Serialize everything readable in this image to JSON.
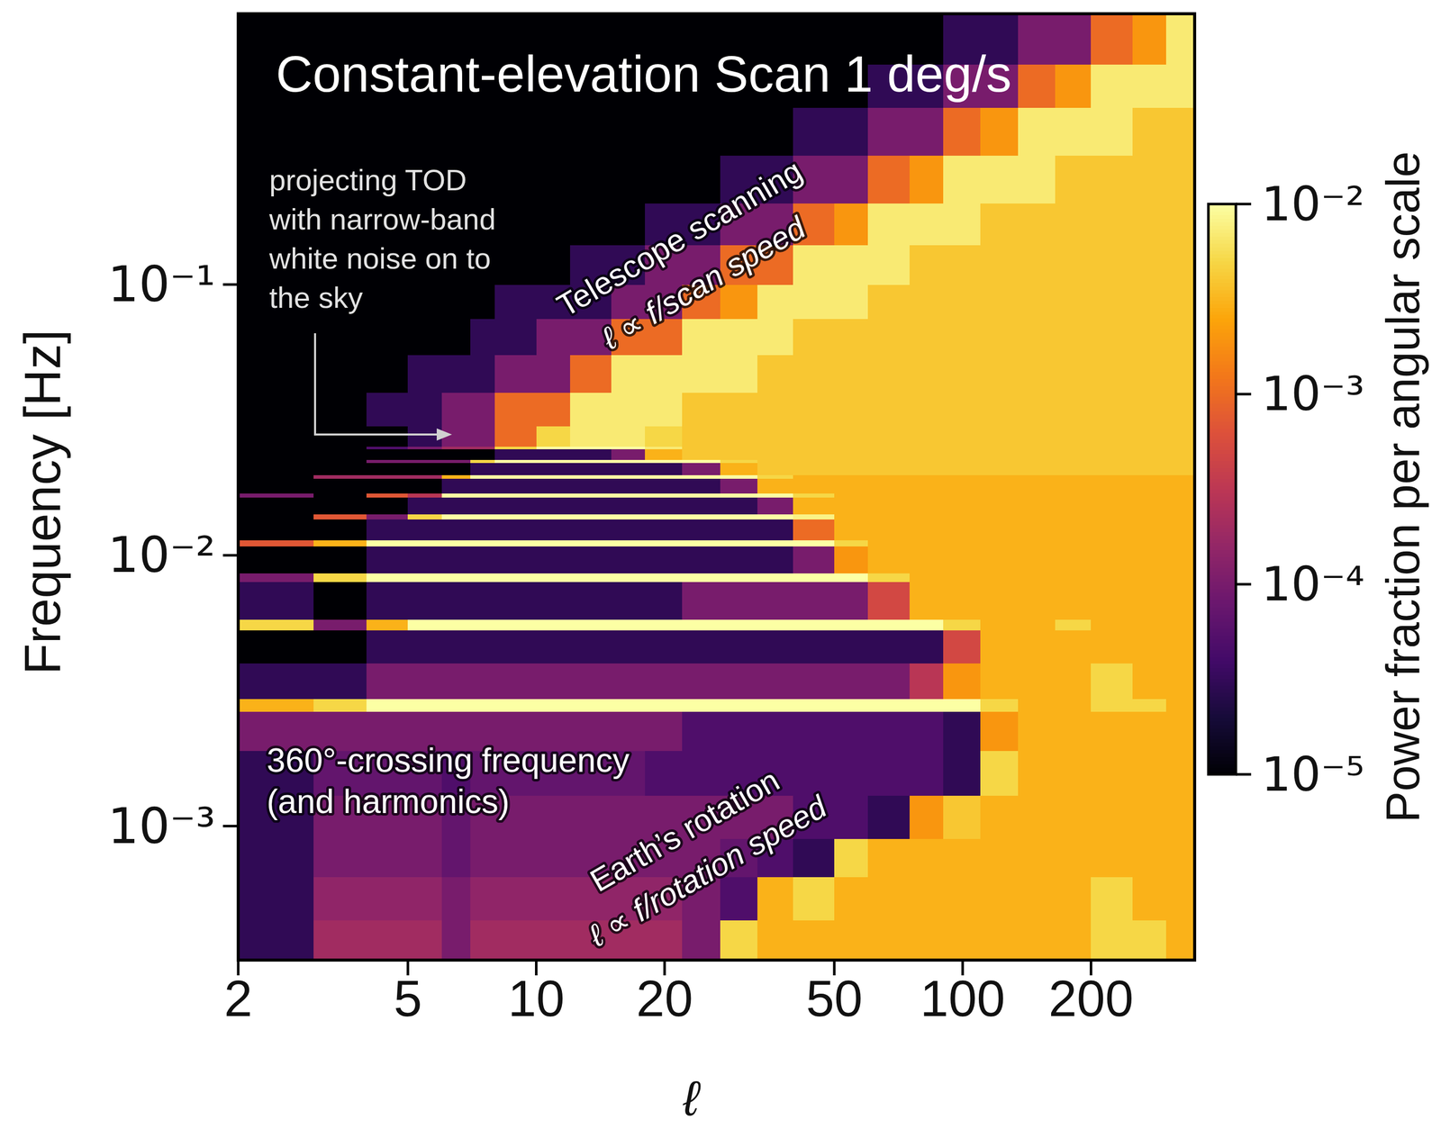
{
  "chart_data": {
    "type": "heatmap",
    "title": "Constant-elevation Scan 1 deg/s",
    "x_label": "ℓ",
    "y_label": "Frequency [Hz]",
    "log": true,
    "grid": false,
    "xlim": [
      2,
      350
    ],
    "ylim": [
      0.00032,
      1
    ],
    "xticks": [
      2,
      5,
      10,
      20,
      50,
      100,
      200
    ],
    "yticks": [
      {
        "value": 0.001,
        "label": "10⁻³"
      },
      {
        "value": 0.01,
        "label": "10⁻²"
      },
      {
        "value": 0.1,
        "label": "10⁻¹"
      }
    ],
    "x_edges": [
      2,
      3,
      4,
      5,
      6,
      7,
      8,
      10,
      12,
      15,
      18,
      22,
      27,
      33,
      40,
      50,
      60,
      75,
      90,
      110,
      135,
      165,
      200,
      250,
      300,
      350
    ],
    "y_edges": [
      0.00032,
      0.00045,
      0.00065,
      0.0009,
      0.0013,
      0.0019,
      0.00265,
      0.00295,
      0.004,
      0.0053,
      0.0058,
      0.008,
      0.0086,
      0.0108,
      0.0114,
      0.0136,
      0.0142,
      0.0164,
      0.017,
      0.0192,
      0.0198,
      0.022,
      0.0226,
      0.0247,
      0.0253,
      0.03,
      0.04,
      0.055,
      0.075,
      0.1,
      0.14,
      0.2,
      0.3,
      0.45,
      0.65,
      1.0
    ],
    "cells": [
      [
        3e-05,
        0.0002,
        0.0002,
        0.0002,
        0.0001,
        0.0002,
        0.0002,
        0.0002,
        0.0002,
        0.0002,
        0.0002,
        0.0001,
        0.005,
        0.003,
        0.003,
        0.003,
        0.003,
        0.003,
        0.003,
        0.003,
        0.003,
        0.003,
        0.005,
        0.005,
        0.003
      ],
      [
        3e-05,
        0.00015,
        0.00015,
        0.00015,
        0.0001,
        0.00015,
        0.00015,
        0.00015,
        0.00015,
        0.00015,
        0.00015,
        0.0001,
        5e-05,
        0.003,
        0.005,
        0.003,
        0.003,
        0.003,
        0.003,
        0.003,
        0.003,
        0.003,
        0.005,
        0.003,
        0.003
      ],
      [
        3e-05,
        0.0001,
        0.0001,
        0.0001,
        7e-05,
        0.0001,
        0.0001,
        0.0001,
        0.0001,
        0.0001,
        0.0001,
        0.0001,
        7e-05,
        5e-05,
        3e-05,
        0.005,
        0.003,
        0.003,
        0.003,
        0.003,
        0.003,
        0.003,
        0.003,
        0.003,
        0.003
      ],
      [
        3e-05,
        0.0001,
        0.0001,
        0.0001,
        7e-05,
        0.0001,
        0.0001,
        0.0001,
        0.0001,
        0.0001,
        0.0001,
        0.0001,
        0.0001,
        0.0001,
        5e-05,
        5e-05,
        3e-05,
        0.002,
        0.004,
        0.003,
        0.003,
        0.003,
        0.003,
        0.003,
        0.003
      ],
      [
        3e-05,
        7e-05,
        7e-05,
        7e-05,
        5e-05,
        7e-05,
        7e-05,
        7e-05,
        7e-05,
        7e-05,
        5e-05,
        5e-05,
        5e-05,
        5e-05,
        5e-05,
        5e-05,
        5e-05,
        5e-05,
        3e-05,
        0.005,
        0.003,
        0.003,
        0.003,
        0.003,
        0.003
      ],
      [
        0.0001,
        0.0001,
        0.0001,
        0.0001,
        0.0001,
        0.0001,
        0.0001,
        0.0001,
        0.0001,
        0.0001,
        0.0001,
        5e-05,
        5e-05,
        5e-05,
        5e-05,
        5e-05,
        5e-05,
        5e-05,
        3e-05,
        0.002,
        0.003,
        0.003,
        0.003,
        0.003,
        0.003
      ],
      [
        0.003,
        0.005,
        0.01,
        0.01,
        0.01,
        0.01,
        0.01,
        0.01,
        0.01,
        0.01,
        0.01,
        0.01,
        0.01,
        0.01,
        0.01,
        0.01,
        0.01,
        0.01,
        0.01,
        0.005,
        0.003,
        0.003,
        0.005,
        0.005,
        0.003
      ],
      [
        3e-05,
        3e-05,
        0.0001,
        0.0001,
        0.0001,
        0.0001,
        0.0001,
        0.0001,
        0.0001,
        0.0001,
        0.0001,
        0.0001,
        0.0001,
        0.0001,
        0.0001,
        0.0001,
        0.0001,
        0.0003,
        0.002,
        0.003,
        0.003,
        0.003,
        0.005,
        0.003,
        0.003
      ],
      [
        1e-05,
        1e-05,
        3e-05,
        3e-05,
        3e-05,
        3e-05,
        3e-05,
        3e-05,
        3e-05,
        3e-05,
        3e-05,
        3e-05,
        3e-05,
        3e-05,
        3e-05,
        3e-05,
        3e-05,
        3e-05,
        0.0005,
        0.003,
        0.003,
        0.003,
        0.003,
        0.003,
        0.003
      ],
      [
        0.005,
        0.0001,
        0.003,
        0.01,
        0.01,
        0.01,
        0.01,
        0.01,
        0.01,
        0.01,
        0.01,
        0.01,
        0.01,
        0.01,
        0.01,
        0.01,
        0.01,
        0.01,
        0.005,
        0.003,
        0.003,
        0.005,
        0.003,
        0.003,
        0.003
      ],
      [
        3e-05,
        1e-05,
        3e-05,
        3e-05,
        3e-05,
        3e-05,
        3e-05,
        3e-05,
        3e-05,
        3e-05,
        3e-05,
        0.0001,
        0.0001,
        0.0001,
        0.0001,
        0.0001,
        0.0005,
        0.003,
        0.003,
        0.003,
        0.003,
        0.003,
        0.003,
        0.003,
        0.003
      ],
      [
        0.0001,
        0.005,
        0.01,
        0.01,
        0.01,
        0.01,
        0.01,
        0.01,
        0.01,
        0.01,
        0.01,
        0.01,
        0.01,
        0.01,
        0.01,
        0.01,
        0.005,
        0.003,
        0.003,
        0.003,
        0.003,
        0.003,
        0.003,
        0.003,
        0.003
      ],
      [
        1e-05,
        1e-05,
        3e-05,
        3e-05,
        3e-05,
        3e-05,
        3e-05,
        3e-05,
        3e-05,
        3e-05,
        3e-05,
        3e-05,
        3e-05,
        3e-05,
        0.0001,
        0.002,
        0.003,
        0.003,
        0.003,
        0.003,
        0.003,
        0.003,
        0.003,
        0.003,
        0.003
      ],
      [
        0.0007,
        0.003,
        0.01,
        0.01,
        0.01,
        0.01,
        0.01,
        0.01,
        0.01,
        0.01,
        0.01,
        0.01,
        0.01,
        0.01,
        0.01,
        0.005,
        0.003,
        0.003,
        0.003,
        0.003,
        0.003,
        0.003,
        0.003,
        0.003,
        0.003
      ],
      [
        1e-05,
        1e-05,
        3e-05,
        3e-05,
        3e-05,
        3e-05,
        3e-05,
        3e-05,
        3e-05,
        3e-05,
        3e-05,
        3e-05,
        3e-05,
        3e-05,
        0.001,
        0.003,
        0.003,
        0.003,
        0.003,
        0.003,
        0.003,
        0.003,
        0.003,
        0.003,
        0.003
      ],
      [
        1e-05,
        0.0007,
        0.0001,
        0.005,
        0.01,
        0.01,
        0.01,
        0.01,
        0.01,
        0.01,
        0.01,
        0.01,
        0.01,
        0.01,
        0.008,
        0.003,
        0.003,
        0.003,
        0.003,
        0.003,
        0.003,
        0.003,
        0.003,
        0.003,
        0.003
      ],
      [
        1e-05,
        1e-05,
        1e-05,
        3e-05,
        3e-05,
        3e-05,
        3e-05,
        3e-05,
        3e-05,
        3e-05,
        3e-05,
        3e-05,
        3e-05,
        0.0001,
        0.003,
        0.003,
        0.003,
        0.003,
        0.003,
        0.003,
        0.003,
        0.003,
        0.003,
        0.003,
        0.003
      ],
      [
        0.0001,
        1e-05,
        0.0007,
        0.0003,
        0.01,
        0.01,
        0.01,
        0.01,
        0.01,
        0.01,
        0.01,
        0.01,
        0.01,
        0.01,
        0.005,
        0.003,
        0.003,
        0.003,
        0.003,
        0.003,
        0.003,
        0.003,
        0.003,
        0.003,
        0.003
      ],
      [
        1e-05,
        1e-05,
        1e-05,
        1e-05,
        3e-05,
        3e-05,
        3e-05,
        3e-05,
        3e-05,
        3e-05,
        3e-05,
        3e-05,
        0.0001,
        0.003,
        0.003,
        0.003,
        0.003,
        0.003,
        0.003,
        0.003,
        0.003,
        0.003,
        0.003,
        0.003,
        0.003
      ],
      [
        1e-05,
        0.0002,
        0.0002,
        0.0002,
        0.003,
        0.01,
        0.01,
        0.01,
        0.01,
        0.01,
        0.01,
        0.01,
        0.01,
        0.005,
        0.003,
        0.003,
        0.003,
        0.003,
        0.003,
        0.003,
        0.003,
        0.003,
        0.003,
        0.003,
        0.003
      ],
      [
        1e-05,
        1e-05,
        1e-05,
        1e-05,
        1e-05,
        3e-05,
        3e-05,
        3e-05,
        3e-05,
        3e-05,
        3e-05,
        0.0001,
        0.003,
        0.004,
        0.004,
        0.004,
        0.004,
        0.004,
        0.004,
        0.004,
        0.004,
        0.004,
        0.004,
        0.004,
        0.004
      ],
      [
        1e-05,
        1e-05,
        0.0001,
        0.0001,
        0.0001,
        0.005,
        0.01,
        0.01,
        0.01,
        0.01,
        0.01,
        0.01,
        0.005,
        0.004,
        0.004,
        0.004,
        0.004,
        0.004,
        0.004,
        0.004,
        0.004,
        0.004,
        0.004,
        0.004,
        0.004
      ],
      [
        1e-05,
        1e-05,
        1e-05,
        1e-05,
        1e-05,
        1e-05,
        3e-05,
        3e-05,
        3e-05,
        0.0001,
        0.003,
        0.004,
        0.004,
        0.004,
        0.004,
        0.004,
        0.004,
        0.004,
        0.004,
        0.004,
        0.004,
        0.004,
        0.004,
        0.004,
        0.004
      ],
      [
        1e-05,
        1e-05,
        5e-05,
        0.0001,
        0.0002,
        0.0002,
        0.005,
        0.01,
        0.01,
        0.01,
        0.007,
        0.004,
        0.004,
        0.004,
        0.004,
        0.004,
        0.004,
        0.004,
        0.004,
        0.004,
        0.004,
        0.004,
        0.004,
        0.004,
        0.004
      ],
      [
        1e-05,
        1e-05,
        1e-05,
        3e-05,
        0.0001,
        0.0001,
        0.001,
        0.005,
        0.007,
        0.007,
        0.005,
        0.004,
        0.004,
        0.004,
        0.004,
        0.004,
        0.004,
        0.004,
        0.004,
        0.004,
        0.004,
        0.004,
        0.004,
        0.004,
        0.004
      ],
      [
        1e-05,
        1e-05,
        3e-05,
        3e-05,
        0.0001,
        0.0001,
        0.001,
        0.001,
        0.007,
        0.007,
        0.007,
        0.004,
        0.004,
        0.004,
        0.004,
        0.004,
        0.004,
        0.004,
        0.004,
        0.004,
        0.004,
        0.004,
        0.004,
        0.004,
        0.004
      ],
      [
        1e-05,
        1e-05,
        1e-05,
        3e-05,
        3e-05,
        3e-05,
        0.0001,
        0.0001,
        0.001,
        0.007,
        0.007,
        0.007,
        0.007,
        0.004,
        0.004,
        0.004,
        0.004,
        0.004,
        0.004,
        0.004,
        0.004,
        0.004,
        0.004,
        0.004,
        0.004
      ],
      [
        1e-05,
        1e-05,
        1e-05,
        1e-05,
        1e-05,
        3e-05,
        3e-05,
        0.0001,
        0.0001,
        0.001,
        0.001,
        0.007,
        0.007,
        0.007,
        0.004,
        0.004,
        0.004,
        0.004,
        0.004,
        0.004,
        0.004,
        0.004,
        0.004,
        0.004,
        0.004
      ],
      [
        1e-05,
        1e-05,
        1e-05,
        1e-05,
        1e-05,
        1e-05,
        3e-05,
        3e-05,
        3e-05,
        0.0001,
        0.0001,
        0.001,
        0.002,
        0.007,
        0.007,
        0.007,
        0.004,
        0.004,
        0.004,
        0.004,
        0.004,
        0.004,
        0.004,
        0.004,
        0.004
      ],
      [
        1e-05,
        1e-05,
        1e-05,
        1e-05,
        1e-05,
        1e-05,
        1e-05,
        1e-05,
        3e-05,
        3e-05,
        0.0001,
        0.0001,
        0.001,
        0.001,
        0.007,
        0.007,
        0.007,
        0.004,
        0.004,
        0.004,
        0.004,
        0.004,
        0.004,
        0.004,
        0.004
      ],
      [
        1e-05,
        1e-05,
        1e-05,
        1e-05,
        1e-05,
        1e-05,
        1e-05,
        1e-05,
        1e-05,
        1e-05,
        3e-05,
        3e-05,
        0.0001,
        0.0001,
        0.001,
        0.002,
        0.007,
        0.007,
        0.007,
        0.004,
        0.004,
        0.004,
        0.004,
        0.004,
        0.004
      ],
      [
        1e-05,
        1e-05,
        1e-05,
        1e-05,
        1e-05,
        1e-05,
        1e-05,
        1e-05,
        1e-05,
        1e-05,
        1e-05,
        1e-05,
        3e-05,
        3e-05,
        0.0001,
        0.0001,
        0.001,
        0.002,
        0.007,
        0.007,
        0.007,
        0.004,
        0.004,
        0.004,
        0.004
      ],
      [
        1e-05,
        1e-05,
        1e-05,
        1e-05,
        1e-05,
        1e-05,
        1e-05,
        1e-05,
        1e-05,
        1e-05,
        1e-05,
        1e-05,
        1e-05,
        1e-05,
        3e-05,
        3e-05,
        0.0001,
        0.0001,
        0.001,
        0.002,
        0.007,
        0.007,
        0.007,
        0.004,
        0.004
      ],
      [
        1e-05,
        1e-05,
        1e-05,
        1e-05,
        1e-05,
        1e-05,
        1e-05,
        1e-05,
        1e-05,
        1e-05,
        1e-05,
        1e-05,
        1e-05,
        1e-05,
        1e-05,
        1e-05,
        3e-05,
        3e-05,
        0.0001,
        0.0001,
        0.001,
        0.002,
        0.007,
        0.007,
        0.007
      ],
      [
        1e-05,
        1e-05,
        1e-05,
        1e-05,
        1e-05,
        1e-05,
        1e-05,
        1e-05,
        1e-05,
        1e-05,
        1e-05,
        1e-05,
        1e-05,
        1e-05,
        1e-05,
        1e-05,
        1e-05,
        1e-05,
        3e-05,
        3e-05,
        0.0001,
        0.0001,
        0.001,
        0.002,
        0.007
      ]
    ],
    "colorbar_label": "Power fraction per angular scale",
    "colorbar_range": [
      1e-05,
      0.01
    ],
    "colorbar_ticks": [
      {
        "value": 1e-05,
        "label": "10⁻⁵"
      },
      {
        "value": 0.0001,
        "label": "10⁻⁴"
      },
      {
        "value": 0.001,
        "label": "10⁻³"
      },
      {
        "value": 0.01,
        "label": "10⁻²"
      }
    ],
    "annotations": [
      {
        "lines": [
          "projecting TOD",
          "with narrow-band",
          "white noise on to",
          "the sky"
        ]
      },
      {
        "lines": [
          "Telescope scanning",
          "ℓ ∝ f/scan speed"
        ]
      },
      {
        "lines": [
          "360°-crossing frequency",
          "(and harmonics)"
        ]
      },
      {
        "lines": [
          "Earth’s rotation",
          "ℓ ∝ f/rotation speed"
        ]
      }
    ]
  }
}
